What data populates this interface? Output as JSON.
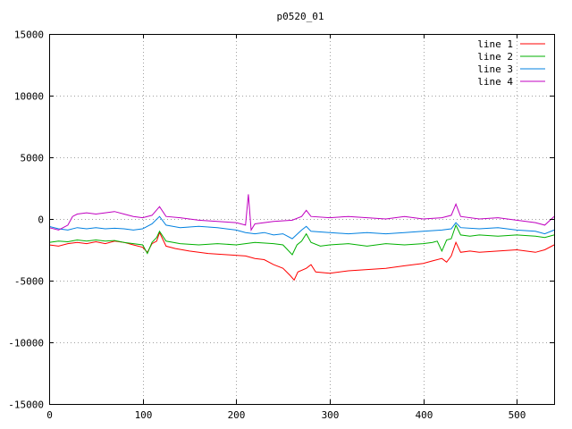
{
  "chart_data": {
    "type": "line",
    "title": "p0520_01",
    "xlabel": "",
    "ylabel": "",
    "xlim": [
      0,
      540
    ],
    "ylim": [
      -15000,
      15000
    ],
    "xticks": [
      0,
      100,
      200,
      300,
      400,
      500
    ],
    "yticks": [
      -15000,
      -10000,
      -5000,
      0,
      5000,
      10000,
      15000
    ],
    "grid": true,
    "legend_position": "top-right",
    "series": [
      {
        "name": "line 1",
        "color": "#ff0000",
        "points": [
          [
            0,
            -2100
          ],
          [
            10,
            -2200
          ],
          [
            20,
            -2000
          ],
          [
            30,
            -1900
          ],
          [
            40,
            -2000
          ],
          [
            50,
            -1850
          ],
          [
            60,
            -2000
          ],
          [
            70,
            -1800
          ],
          [
            80,
            -1900
          ],
          [
            90,
            -2100
          ],
          [
            100,
            -2300
          ],
          [
            105,
            -2700
          ],
          [
            110,
            -2000
          ],
          [
            115,
            -1800
          ],
          [
            118,
            -1100
          ],
          [
            125,
            -2200
          ],
          [
            135,
            -2400
          ],
          [
            150,
            -2600
          ],
          [
            170,
            -2800
          ],
          [
            190,
            -2900
          ],
          [
            210,
            -3000
          ],
          [
            220,
            -3200
          ],
          [
            230,
            -3300
          ],
          [
            240,
            -3700
          ],
          [
            250,
            -4000
          ],
          [
            258,
            -4600
          ],
          [
            262,
            -4950
          ],
          [
            266,
            -4300
          ],
          [
            275,
            -4000
          ],
          [
            280,
            -3700
          ],
          [
            285,
            -4300
          ],
          [
            300,
            -4400
          ],
          [
            320,
            -4200
          ],
          [
            340,
            -4100
          ],
          [
            360,
            -4000
          ],
          [
            380,
            -3800
          ],
          [
            400,
            -3600
          ],
          [
            410,
            -3400
          ],
          [
            420,
            -3200
          ],
          [
            425,
            -3500
          ],
          [
            430,
            -3000
          ],
          [
            435,
            -1900
          ],
          [
            440,
            -2700
          ],
          [
            450,
            -2600
          ],
          [
            460,
            -2700
          ],
          [
            480,
            -2600
          ],
          [
            500,
            -2500
          ],
          [
            520,
            -2700
          ],
          [
            530,
            -2500
          ],
          [
            540,
            -2100
          ]
        ]
      },
      {
        "name": "line 2",
        "color": "#00b000",
        "points": [
          [
            0,
            -1900
          ],
          [
            10,
            -1800
          ],
          [
            20,
            -1850
          ],
          [
            30,
            -1700
          ],
          [
            40,
            -1800
          ],
          [
            50,
            -1700
          ],
          [
            60,
            -1800
          ],
          [
            70,
            -1750
          ],
          [
            80,
            -1900
          ],
          [
            90,
            -2000
          ],
          [
            100,
            -2100
          ],
          [
            105,
            -2800
          ],
          [
            110,
            -1900
          ],
          [
            115,
            -1500
          ],
          [
            118,
            -1000
          ],
          [
            125,
            -1800
          ],
          [
            140,
            -2000
          ],
          [
            160,
            -2100
          ],
          [
            180,
            -2000
          ],
          [
            200,
            -2100
          ],
          [
            220,
            -1900
          ],
          [
            240,
            -2000
          ],
          [
            250,
            -2100
          ],
          [
            260,
            -2900
          ],
          [
            265,
            -2100
          ],
          [
            270,
            -1800
          ],
          [
            275,
            -1200
          ],
          [
            280,
            -1900
          ],
          [
            290,
            -2200
          ],
          [
            300,
            -2100
          ],
          [
            320,
            -2000
          ],
          [
            340,
            -2200
          ],
          [
            360,
            -2000
          ],
          [
            380,
            -2100
          ],
          [
            400,
            -2000
          ],
          [
            410,
            -1900
          ],
          [
            415,
            -1800
          ],
          [
            420,
            -2600
          ],
          [
            425,
            -1700
          ],
          [
            430,
            -1600
          ],
          [
            435,
            -500
          ],
          [
            440,
            -1300
          ],
          [
            450,
            -1400
          ],
          [
            460,
            -1300
          ],
          [
            480,
            -1400
          ],
          [
            500,
            -1300
          ],
          [
            520,
            -1400
          ],
          [
            530,
            -1500
          ],
          [
            540,
            -1300
          ]
        ]
      },
      {
        "name": "line 3",
        "color": "#0080e0",
        "points": [
          [
            0,
            -600
          ],
          [
            10,
            -800
          ],
          [
            20,
            -900
          ],
          [
            30,
            -700
          ],
          [
            40,
            -800
          ],
          [
            50,
            -700
          ],
          [
            60,
            -800
          ],
          [
            70,
            -750
          ],
          [
            80,
            -800
          ],
          [
            90,
            -900
          ],
          [
            100,
            -800
          ],
          [
            110,
            -400
          ],
          [
            118,
            200
          ],
          [
            125,
            -500
          ],
          [
            140,
            -700
          ],
          [
            160,
            -600
          ],
          [
            180,
            -700
          ],
          [
            200,
            -900
          ],
          [
            210,
            -1100
          ],
          [
            220,
            -1200
          ],
          [
            230,
            -1100
          ],
          [
            240,
            -1300
          ],
          [
            250,
            -1200
          ],
          [
            260,
            -1600
          ],
          [
            270,
            -900
          ],
          [
            275,
            -600
          ],
          [
            280,
            -1000
          ],
          [
            300,
            -1100
          ],
          [
            320,
            -1200
          ],
          [
            340,
            -1100
          ],
          [
            360,
            -1200
          ],
          [
            380,
            -1100
          ],
          [
            400,
            -1000
          ],
          [
            420,
            -900
          ],
          [
            430,
            -800
          ],
          [
            435,
            -300
          ],
          [
            440,
            -700
          ],
          [
            460,
            -800
          ],
          [
            480,
            -700
          ],
          [
            500,
            -900
          ],
          [
            520,
            -1000
          ],
          [
            530,
            -1200
          ],
          [
            540,
            -900
          ]
        ]
      },
      {
        "name": "line 4",
        "color": "#c000c0",
        "points": [
          [
            0,
            -700
          ],
          [
            10,
            -900
          ],
          [
            20,
            -500
          ],
          [
            25,
            200
          ],
          [
            30,
            400
          ],
          [
            40,
            500
          ],
          [
            50,
            400
          ],
          [
            60,
            500
          ],
          [
            70,
            600
          ],
          [
            80,
            400
          ],
          [
            90,
            200
          ],
          [
            100,
            100
          ],
          [
            110,
            300
          ],
          [
            118,
            1000
          ],
          [
            125,
            200
          ],
          [
            140,
            100
          ],
          [
            160,
            -100
          ],
          [
            180,
            -200
          ],
          [
            200,
            -300
          ],
          [
            210,
            -500
          ],
          [
            213,
            2000
          ],
          [
            216,
            -900
          ],
          [
            220,
            -400
          ],
          [
            240,
            -200
          ],
          [
            260,
            -100
          ],
          [
            270,
            200
          ],
          [
            275,
            700
          ],
          [
            280,
            200
          ],
          [
            300,
            100
          ],
          [
            320,
            200
          ],
          [
            340,
            100
          ],
          [
            360,
            0
          ],
          [
            380,
            200
          ],
          [
            400,
            0
          ],
          [
            420,
            100
          ],
          [
            430,
            300
          ],
          [
            435,
            1200
          ],
          [
            440,
            200
          ],
          [
            460,
            0
          ],
          [
            480,
            100
          ],
          [
            500,
            -100
          ],
          [
            520,
            -300
          ],
          [
            530,
            -500
          ],
          [
            540,
            200
          ]
        ]
      }
    ]
  }
}
